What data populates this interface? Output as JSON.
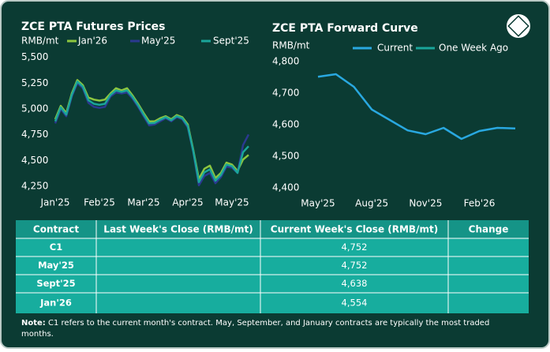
{
  "chart_data": [
    {
      "type": "line",
      "title": "ZCE PTA Futures Prices",
      "y_label": "RMB/mt",
      "categories": [
        "Jan'25",
        null,
        null,
        null,
        null,
        null,
        null,
        null,
        "Feb'25",
        null,
        null,
        null,
        null,
        null,
        null,
        null,
        "Mar'25",
        null,
        null,
        null,
        null,
        null,
        null,
        null,
        "Apr'25",
        null,
        null,
        null,
        null,
        null,
        null,
        null,
        "May'25",
        null,
        null,
        null
      ],
      "series": [
        {
          "name": "Jan'26",
          "color": "#8dc63f",
          "values": [
            4900,
            5030,
            4960,
            5150,
            5280,
            5230,
            5110,
            5090,
            5080,
            5090,
            5150,
            5200,
            5180,
            5200,
            5130,
            5050,
            4960,
            4880,
            4880,
            4910,
            4930,
            4900,
            4940,
            4920,
            4850,
            4600,
            4320,
            4420,
            4450,
            4330,
            4380,
            4480,
            4460,
            4400,
            4510,
            4554
          ]
        },
        {
          "name": "May'25",
          "color": "#2b3990",
          "values": [
            4860,
            5000,
            4930,
            5120,
            5250,
            5200,
            5060,
            5020,
            5010,
            5020,
            5120,
            5160,
            5150,
            5160,
            5100,
            5020,
            4930,
            4840,
            4850,
            4880,
            4910,
            4880,
            4920,
            4900,
            4820,
            4580,
            4260,
            4350,
            4380,
            4280,
            4340,
            4440,
            4430,
            4380,
            4650,
            4752
          ]
        },
        {
          "name": "Sept'25",
          "color": "#1aa59a",
          "values": [
            4880,
            5015,
            4945,
            5135,
            5265,
            5215,
            5085,
            5050,
            5040,
            5050,
            5135,
            5180,
            5165,
            5180,
            5115,
            5035,
            4945,
            4860,
            4865,
            4895,
            4920,
            4890,
            4930,
            4910,
            4835,
            4590,
            4290,
            4385,
            4415,
            4305,
            4360,
            4460,
            4445,
            4380,
            4580,
            4638
          ]
        }
      ],
      "ylim": [
        4220,
        5520
      ],
      "yticks": [
        {
          "value": 4250,
          "label": "4,250"
        },
        {
          "value": 4500,
          "label": "4,500"
        },
        {
          "value": 4750,
          "label": "4,750"
        },
        {
          "value": 5000,
          "label": "5,000"
        },
        {
          "value": 5250,
          "label": "5,250"
        },
        {
          "value": 5500,
          "label": "5,500"
        }
      ]
    },
    {
      "type": "line",
      "title": "ZCE PTA Forward Curve",
      "y_label": "RMB/mt",
      "categories": [
        "May'25",
        null,
        null,
        "Aug'25",
        null,
        null,
        "Nov'25",
        null,
        null,
        "Feb'26",
        null,
        null
      ],
      "series": [
        {
          "name": "Current",
          "color": "#29a8e0",
          "values": [
            4752,
            4760,
            4720,
            4648,
            4615,
            4582,
            4570,
            4590,
            4555,
            4580,
            4590,
            4588
          ]
        },
        {
          "name": "One Week Ago",
          "color": "#1aa59a",
          "values": [
            null,
            null,
            null,
            null,
            null,
            null,
            null,
            null,
            null,
            null,
            null,
            null
          ]
        }
      ],
      "ylim": [
        4380,
        4820
      ],
      "yticks": [
        {
          "value": 4400,
          "label": "4,400"
        },
        {
          "value": 4500,
          "label": "4,500"
        },
        {
          "value": 4600,
          "label": "4,600"
        },
        {
          "value": 4700,
          "label": "4,700"
        },
        {
          "value": 4800,
          "label": "4,800"
        }
      ]
    }
  ],
  "table": {
    "header": [
      "Contract",
      "Last Week's Close (RMB/mt)",
      "Current Week's Close (RMB/mt)",
      "Change"
    ],
    "rows": [
      {
        "contract": "C1",
        "current": "4,752"
      },
      {
        "contract": "May'25",
        "current": "4,752"
      },
      {
        "contract": "Sept'25",
        "current": "4,638"
      },
      {
        "contract": "Jan'26",
        "current": "4,554"
      }
    ]
  },
  "note": {
    "label": "Note:",
    "text": "C1 refers to the current month's contract. May, September, and January contracts are typically the most traded months."
  }
}
